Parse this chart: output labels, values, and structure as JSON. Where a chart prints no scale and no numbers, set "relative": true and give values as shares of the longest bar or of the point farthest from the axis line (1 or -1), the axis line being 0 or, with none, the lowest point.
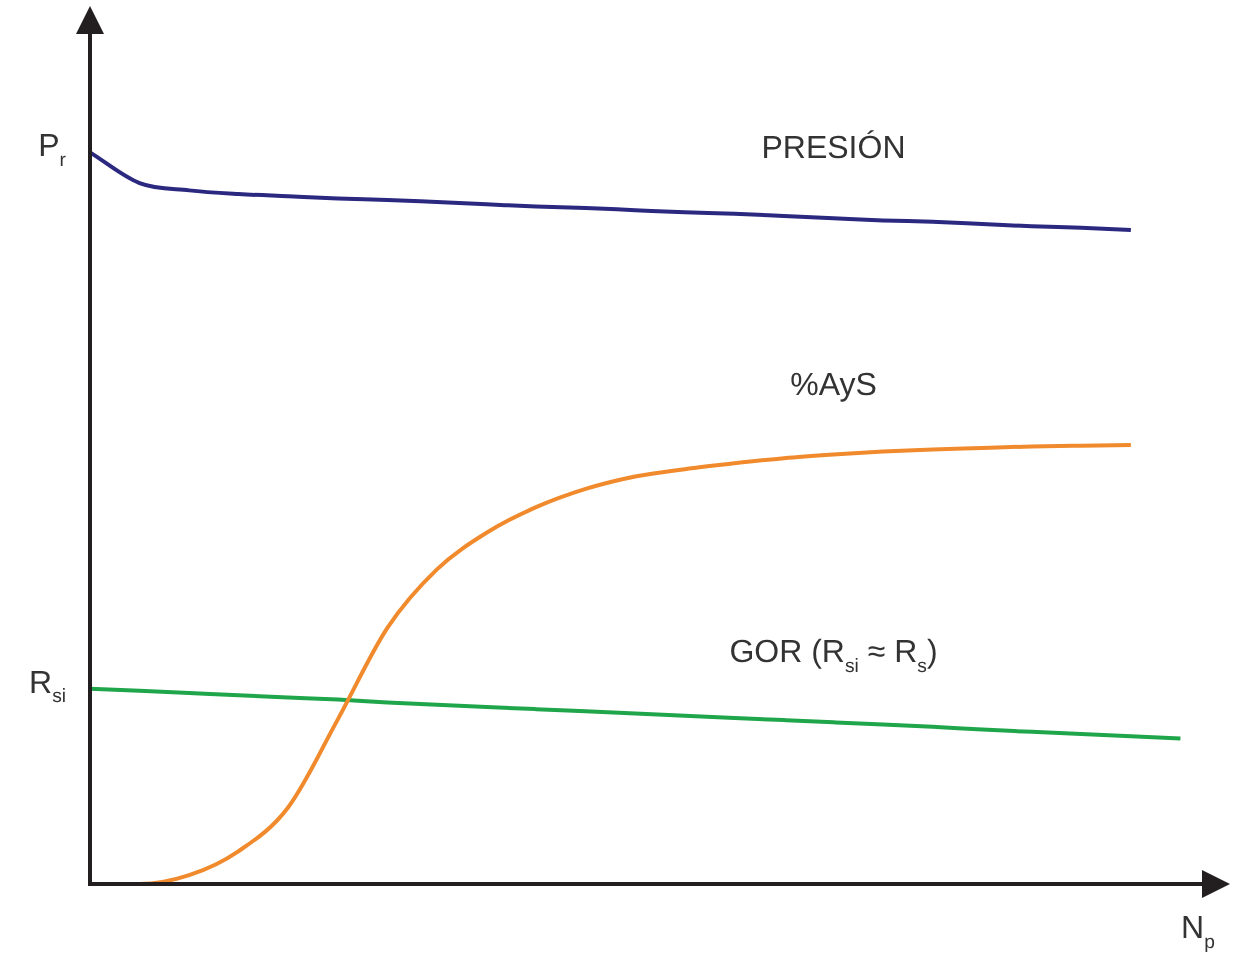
{
  "chart_data": {
    "type": "line",
    "relative": true,
    "xlabel": "N$_{p}$",
    "legend": false,
    "marker": "none",
    "categories": [
      null,
      null,
      null,
      null,
      null,
      null,
      null,
      null,
      null,
      null,
      null,
      null,
      null,
      null,
      null,
      null,
      null,
      null,
      null,
      null,
      null,
      null,
      null,
      null
    ],
    "annotations": [
      "P$_{r}$",
      "R$_{si}$"
    ],
    "series": [
      {
        "name": "PRESIÓN",
        "color": "#2b2880",
        "values": [
          1,
          0.958,
          0.948,
          0.943,
          0.94,
          0.937,
          0.935,
          0.932,
          0.929,
          0.926,
          0.924,
          0.921,
          0.918,
          0.916,
          0.913,
          0.91,
          0.907,
          0.905,
          0.902,
          0.899,
          0.897,
          0.894,
          null,
          null
        ]
      },
      {
        "name": "%AyS",
        "color": "#f08a2c",
        "values": [
          0,
          0,
          0.012,
          0.045,
          0.105,
          0.225,
          0.35,
          0.43,
          0.48,
          0.515,
          0.54,
          0.557,
          0.567,
          0.575,
          0.582,
          0.587,
          0.591,
          0.594,
          0.596,
          0.598,
          0.599,
          0.6,
          null,
          null
        ]
      },
      {
        "name": "GOR (R$_{si}$ ≈ R$_{s}$)",
        "color": "#1fa54a",
        "values": [
          0.267,
          0.264,
          0.261,
          0.258,
          0.255,
          0.252,
          0.248,
          0.245,
          0.242,
          0.239,
          0.236,
          0.233,
          0.23,
          0.227,
          0.224,
          0.221,
          0.218,
          0.215,
          0.211,
          0.208,
          0.205,
          0.202,
          0.199,
          null
        ]
      }
    ]
  }
}
